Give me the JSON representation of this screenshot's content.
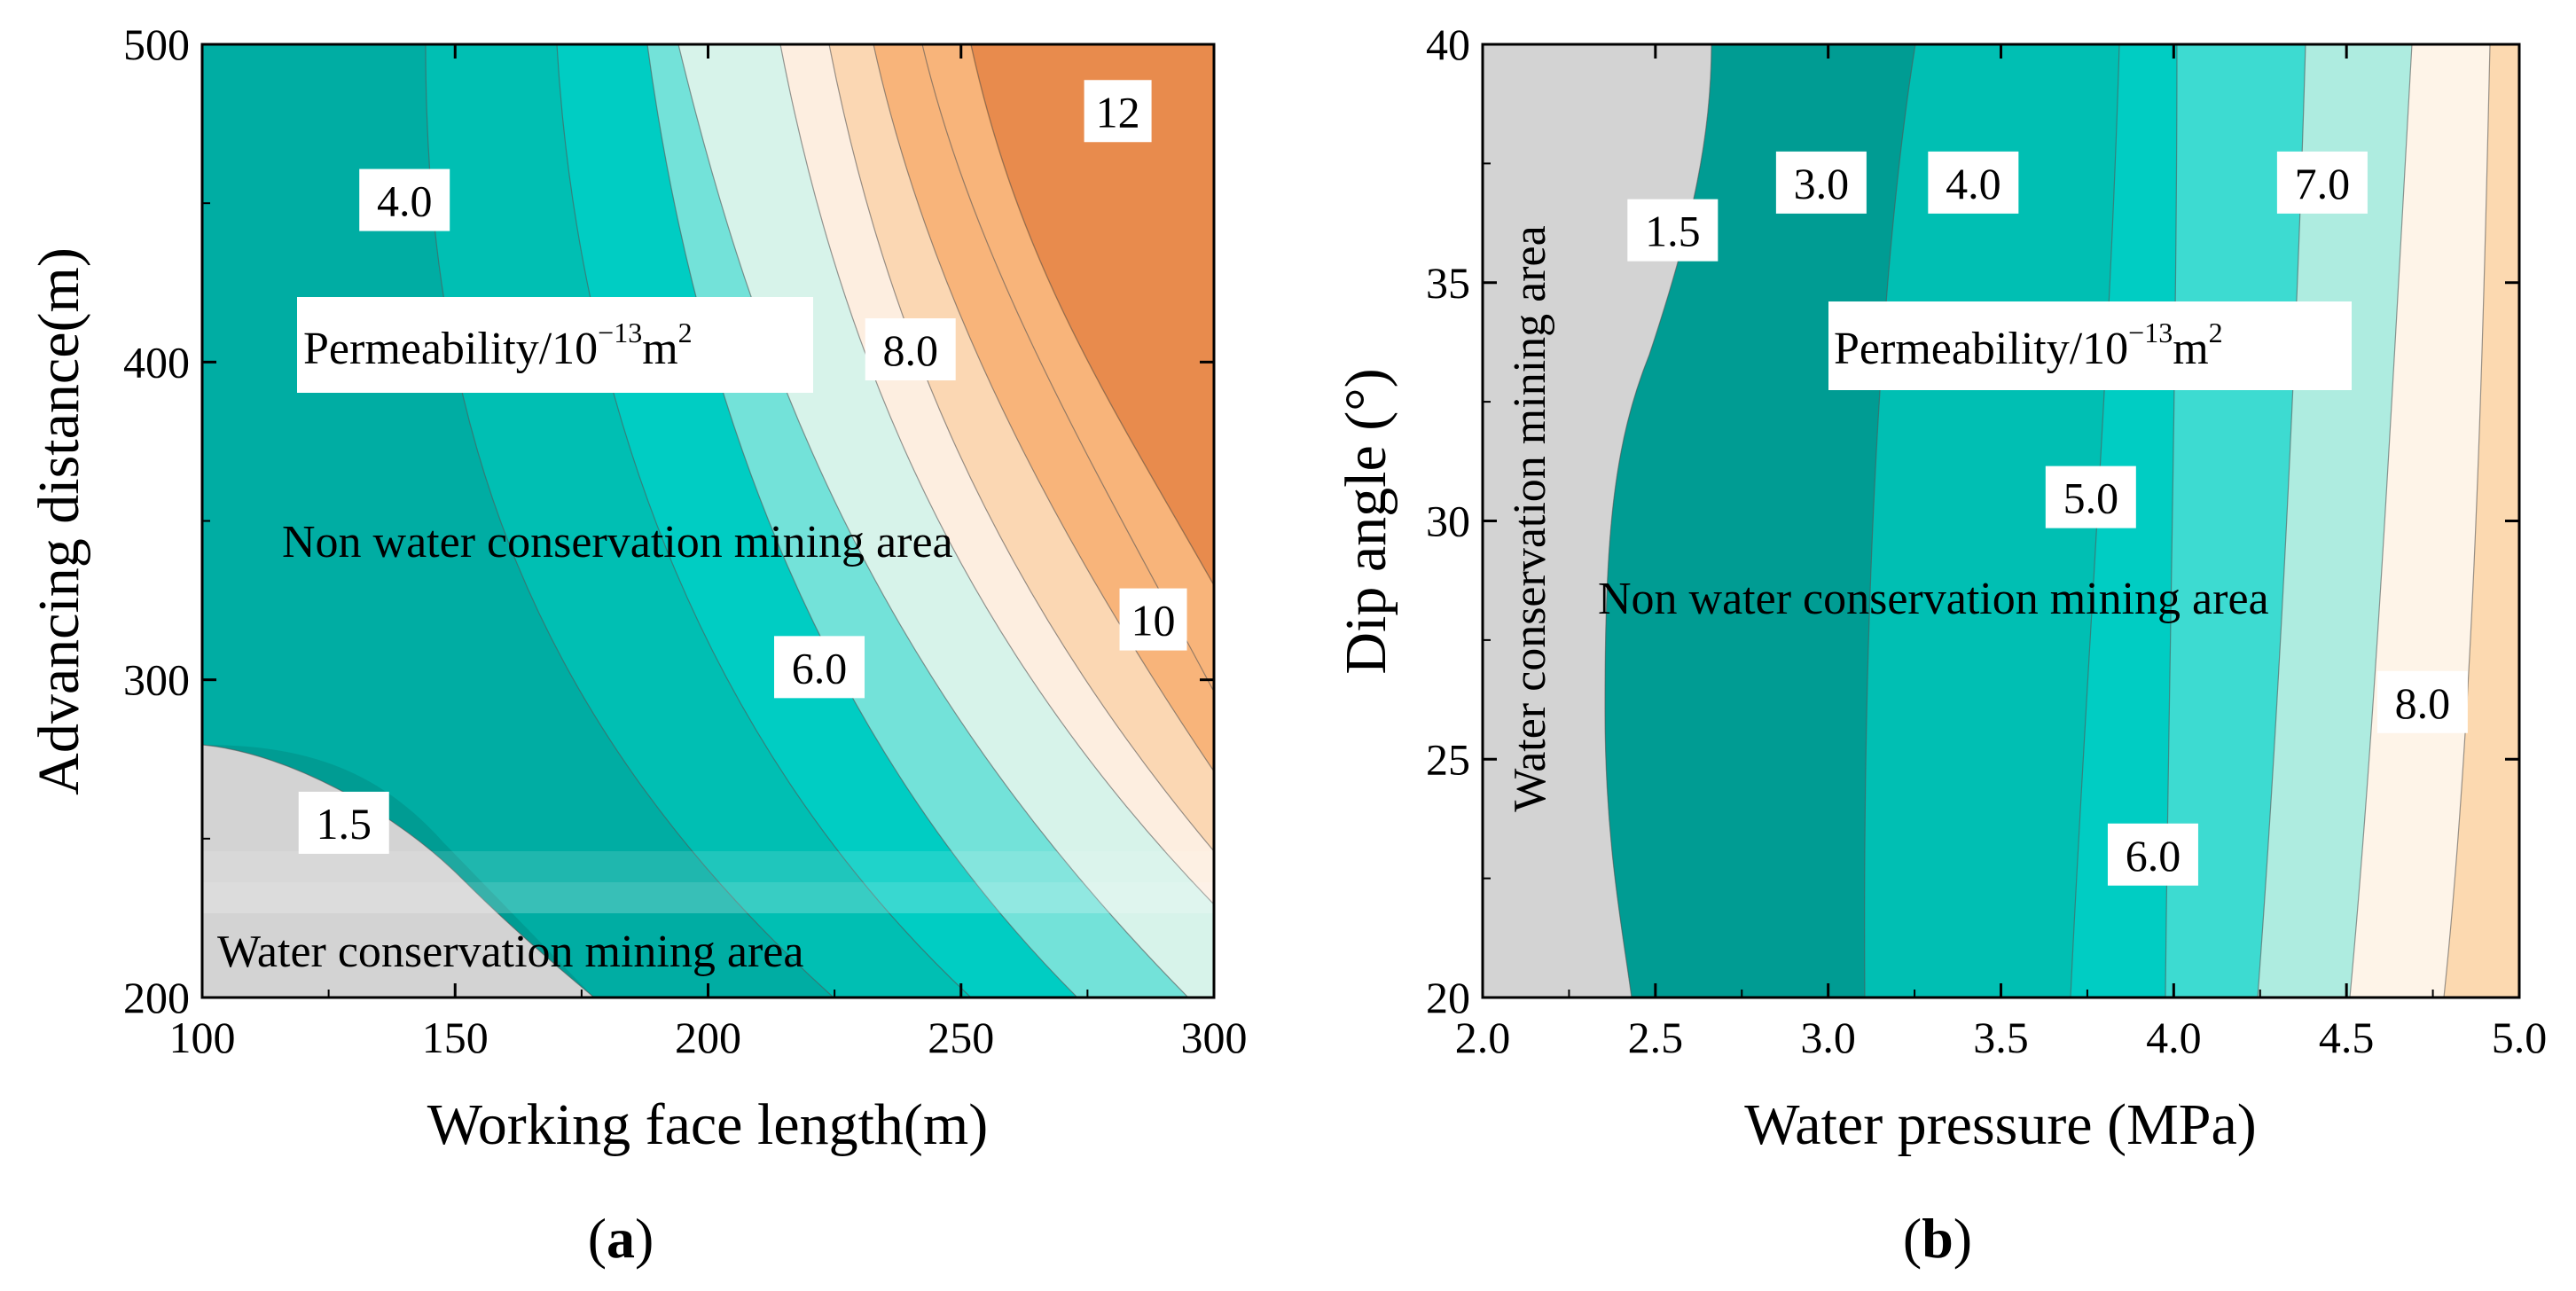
{
  "chart_data": [
    {
      "panel": "(a)",
      "type": "contour",
      "xlabel": "Working face length(m)",
      "ylabel": "Advancing distance(m)",
      "xlim": [
        100,
        300
      ],
      "ylim": [
        200,
        500
      ],
      "x_ticks": [
        "100",
        "150",
        "200",
        "250",
        "300"
      ],
      "y_ticks": [
        "200",
        "300",
        "400",
        "500"
      ],
      "variable": "Permeability",
      "variable_unit": "10^-13 m^2",
      "variable_label": {
        "text": "Permeability/10",
        "exp": "−13",
        "unit": "m",
        "unit_exp": "2"
      },
      "levels": [
        1.5,
        3.0,
        4.0,
        5.0,
        6.0,
        7.0,
        8.0,
        9.0,
        10,
        11,
        12
      ],
      "level_colors": [
        "#d3d3d3",
        "#009c93",
        "#00ada3",
        "#00bfb3",
        "#00cdc3",
        "#73e2d9",
        "#d7f3ea",
        "#fdeee0",
        "#fbd7b3",
        "#f8b47a",
        "#f49b4f",
        "#e88b4d"
      ],
      "contour_labels": [
        {
          "text": "1.5",
          "x": 128,
          "y": 255
        },
        {
          "text": "4.0",
          "x": 140,
          "y": 451
        },
        {
          "text": "6.0",
          "x": 222,
          "y": 304
        },
        {
          "text": "8.0",
          "x": 240,
          "y": 404
        },
        {
          "text": "10",
          "x": 288,
          "y": 319
        },
        {
          "text": "12",
          "x": 281,
          "y": 479
        }
      ],
      "annotations": {
        "upper_region": "Non water conservation mining area",
        "lower_region": "Water conservation mining area"
      }
    },
    {
      "panel": "(b)",
      "type": "contour",
      "xlabel": "Water pressure (MPa)",
      "ylabel": "Dip angle (°)",
      "xlim": [
        2.0,
        5.0
      ],
      "ylim": [
        20,
        40
      ],
      "x_ticks": [
        "2.0",
        "2.5",
        "3.0",
        "3.5",
        "4.0",
        "4.5",
        "5.0"
      ],
      "y_ticks": [
        "20",
        "25",
        "30",
        "35",
        "40"
      ],
      "variable": "Permeability",
      "variable_unit": "10^-13 m^2",
      "variable_label": {
        "text": "Permeability/10",
        "exp": "−13",
        "unit": "m",
        "unit_exp": "2"
      },
      "levels": [
        1.5,
        3.0,
        4.0,
        5.0,
        6.0,
        7.0,
        8.0
      ],
      "level_colors": [
        "#d3d3d3",
        "#009c93",
        "#00ada3",
        "#00bfb3",
        "#00cdc3",
        "#3ddbd1",
        "#aeece0",
        "#fef4e8",
        "#fcd9b0"
      ],
      "contour_labels": [
        {
          "text": "1.5",
          "x": 2.55,
          "y": 36.1
        },
        {
          "text": "3.0",
          "x": 2.98,
          "y": 37.1
        },
        {
          "text": "4.0",
          "x": 3.42,
          "y": 37.1
        },
        {
          "text": "5.0",
          "x": 3.76,
          "y": 30.5
        },
        {
          "text": "6.0",
          "x": 3.94,
          "y": 23.0
        },
        {
          "text": "7.0",
          "x": 4.43,
          "y": 37.1
        },
        {
          "text": "8.0",
          "x": 4.72,
          "y": 26.2
        }
      ],
      "annotations": {
        "main_region": "Non water conservation mining area",
        "left_region": "Water conservation mining area"
      }
    }
  ]
}
